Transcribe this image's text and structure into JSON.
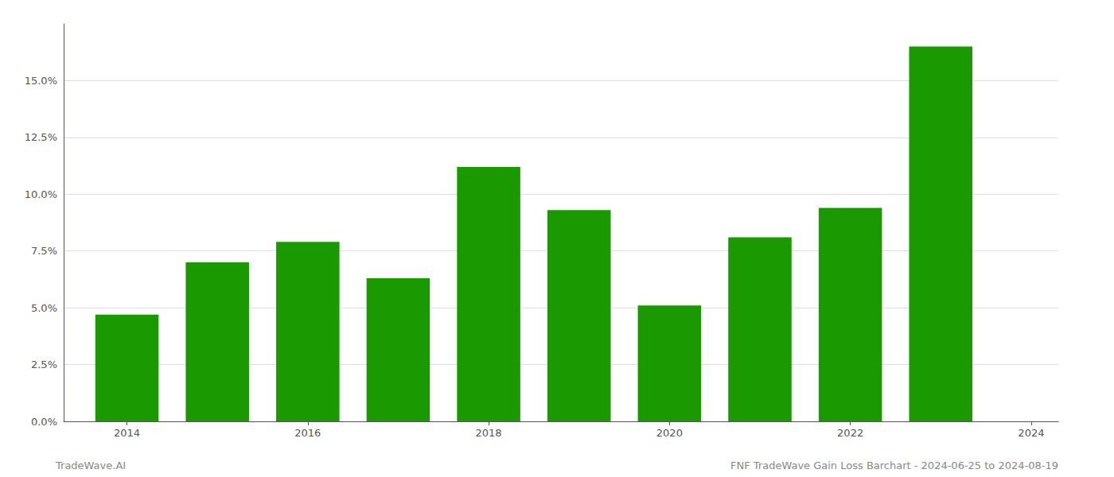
{
  "chart_data": {
    "type": "bar",
    "x": [
      2014,
      2015,
      2016,
      2017,
      2018,
      2019,
      2020,
      2021,
      2022,
      2023
    ],
    "values": [
      0.047,
      0.07,
      0.079,
      0.063,
      0.112,
      0.093,
      0.051,
      0.081,
      0.094,
      0.165
    ],
    "color": "#1a9a00",
    "xlim": [
      2013.3,
      2024.3
    ],
    "xticks": [
      2014,
      2016,
      2018,
      2020,
      2022,
      2024
    ],
    "ylim": [
      0,
      0.175
    ],
    "yticks": [
      {
        "value": 0.0,
        "label": "0.0%"
      },
      {
        "value": 0.025,
        "label": "2.5%"
      },
      {
        "value": 0.05,
        "label": "5.0%"
      },
      {
        "value": 0.075,
        "label": "7.5%"
      },
      {
        "value": 0.1,
        "label": "10.0%"
      },
      {
        "value": 0.125,
        "label": "12.5%"
      },
      {
        "value": 0.15,
        "label": "15.0%"
      }
    ],
    "grid": true,
    "annotations": [
      "TradeWave.AI",
      "FNF TradeWave Gain Loss Barchart - 2024-06-25 to 2024-08-19"
    ]
  }
}
